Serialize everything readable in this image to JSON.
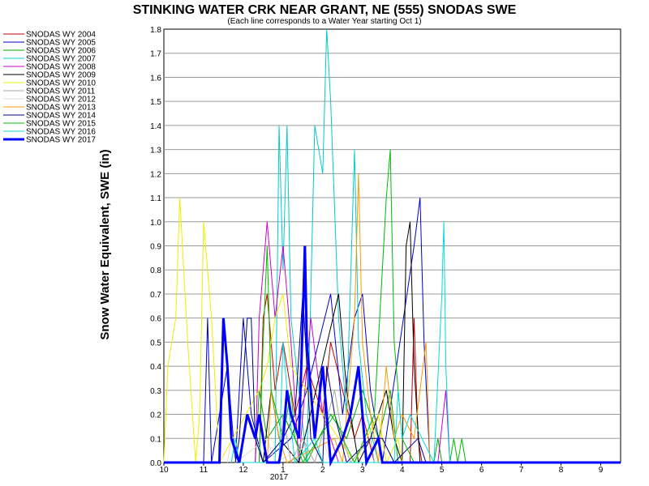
{
  "chart_data": {
    "type": "line",
    "title": "STINKING WATER CRK NEAR GRANT, NE (555) SNODAS SWE",
    "subtitle": "(Each line corresponds to a Water Year starting Oct 1)",
    "xlabel": "",
    "ylabel": "Snow Water Equivalent, SWE (in)",
    "x_year_label": "2017",
    "xlim": [
      10,
      21.5
    ],
    "ylim": [
      0,
      1.8
    ],
    "x_ticks": [
      {
        "value": 10,
        "label": "10"
      },
      {
        "value": 11,
        "label": "11"
      },
      {
        "value": 12,
        "label": "12"
      },
      {
        "value": 13,
        "label": "1"
      },
      {
        "value": 14,
        "label": "2"
      },
      {
        "value": 15,
        "label": "3"
      },
      {
        "value": 16,
        "label": "4"
      },
      {
        "value": 17,
        "label": "5"
      },
      {
        "value": 18,
        "label": "6"
      },
      {
        "value": 19,
        "label": "7"
      },
      {
        "value": 20,
        "label": "8"
      },
      {
        "value": 21,
        "label": "9"
      }
    ],
    "y_ticks": [
      "0.0",
      "0.1",
      "0.2",
      "0.3",
      "0.4",
      "0.5",
      "0.6",
      "0.7",
      "0.8",
      "0.9",
      "1.0",
      "1.1",
      "1.2",
      "1.3",
      "1.4",
      "1.5",
      "1.6",
      "1.7",
      "1.8"
    ],
    "grid": "horizontal",
    "legend_position": "left",
    "series": [
      {
        "name": "SNODAS WY 2004",
        "color": "#cc0000",
        "width": 1,
        "points": [
          [
            12.4,
            0
          ],
          [
            12.5,
            0.6
          ],
          [
            12.6,
            0.7
          ],
          [
            12.8,
            0.3
          ],
          [
            13,
            0.5
          ],
          [
            13.3,
            0.2
          ],
          [
            13.6,
            0.4
          ],
          [
            14,
            0.2
          ],
          [
            14.2,
            0.5
          ],
          [
            14.5,
            0.3
          ],
          [
            14.8,
            0.1
          ],
          [
            15,
            0.2
          ],
          [
            15.3,
            0
          ],
          [
            16.2,
            0
          ],
          [
            16.3,
            0.6
          ],
          [
            16.4,
            0.1
          ],
          [
            16.5,
            0
          ]
        ]
      },
      {
        "name": "SNODAS WY 2005",
        "color": "#0000cc",
        "width": 1,
        "points": [
          [
            11,
            0
          ],
          [
            11.1,
            0.6
          ],
          [
            11.2,
            0
          ],
          [
            11.6,
            0.4
          ],
          [
            11.8,
            0
          ],
          [
            12,
            0.6
          ],
          [
            12.2,
            0.2
          ],
          [
            12.5,
            0
          ],
          [
            13.2,
            0.1
          ],
          [
            13.6,
            0.3
          ],
          [
            14.2,
            0.7
          ],
          [
            14.5,
            0.2
          ],
          [
            14.8,
            0.6
          ],
          [
            15,
            0.7
          ],
          [
            15.2,
            0.3
          ],
          [
            15.5,
            0
          ],
          [
            16.3,
            0.9
          ],
          [
            16.45,
            1.1
          ],
          [
            16.55,
            0.5
          ],
          [
            16.7,
            0
          ]
        ]
      },
      {
        "name": "SNODAS WY 2006",
        "color": "#00aa00",
        "width": 1,
        "points": [
          [
            12.3,
            0
          ],
          [
            12.4,
            0.3
          ],
          [
            12.6,
            0.1
          ],
          [
            13,
            0.2
          ],
          [
            13.3,
            0.1
          ],
          [
            13.6,
            0
          ],
          [
            14.2,
            0.2
          ],
          [
            14.6,
            0.1
          ],
          [
            15,
            0.3
          ],
          [
            15.4,
            0.1
          ],
          [
            15.7,
            0.3
          ],
          [
            15.9,
            0
          ],
          [
            16.8,
            0
          ],
          [
            16.9,
            0.1
          ],
          [
            17,
            0
          ]
        ]
      },
      {
        "name": "SNODAS WY 2007",
        "color": "#00cccc",
        "width": 1,
        "points": [
          [
            12.8,
            0
          ],
          [
            12.9,
            1.4
          ],
          [
            13,
            0.8
          ],
          [
            13.1,
            1.4
          ],
          [
            13.2,
            0.6
          ],
          [
            13.6,
            0
          ],
          [
            13.8,
            1.4
          ],
          [
            14,
            1.2
          ],
          [
            14.1,
            1.8
          ],
          [
            14.2,
            1.5
          ],
          [
            14.4,
            0.6
          ],
          [
            14.6,
            0.2
          ],
          [
            14.8,
            1.3
          ],
          [
            14.9,
            0.5
          ],
          [
            15.1,
            0.2
          ],
          [
            15.4,
            0
          ]
        ]
      },
      {
        "name": "SNODAS WY 2008",
        "color": "#cc00cc",
        "width": 1,
        "points": [
          [
            12.3,
            0
          ],
          [
            12.4,
            0.6
          ],
          [
            12.5,
            0.8
          ],
          [
            12.6,
            1.0
          ],
          [
            12.8,
            0.6
          ],
          [
            13,
            0.9
          ],
          [
            13.2,
            0.5
          ],
          [
            13.4,
            0
          ],
          [
            13.7,
            0.6
          ],
          [
            14,
            0.2
          ],
          [
            14.4,
            0
          ],
          [
            16.9,
            0
          ],
          [
            17.1,
            0.3
          ],
          [
            17.2,
            0
          ]
        ]
      },
      {
        "name": "SNODAS WY 2009",
        "color": "#000000",
        "width": 1,
        "points": [
          [
            12.5,
            0
          ],
          [
            12.7,
            0.3
          ],
          [
            12.9,
            0.1
          ],
          [
            13.4,
            0
          ],
          [
            14.4,
            0.7
          ],
          [
            14.6,
            0.3
          ],
          [
            14.9,
            0
          ],
          [
            15.2,
            0.1
          ],
          [
            15.6,
            0.3
          ],
          [
            15.8,
            0.1
          ],
          [
            16,
            0
          ],
          [
            16.1,
            0.9
          ],
          [
            16.2,
            1.0
          ],
          [
            16.3,
            0.4
          ],
          [
            16.45,
            0
          ]
        ]
      },
      {
        "name": "SNODAS WY 2010",
        "color": "#eeee00",
        "width": 1,
        "points": [
          [
            10,
            0
          ],
          [
            10.1,
            0.4
          ],
          [
            10.3,
            0.6
          ],
          [
            10.4,
            1.1
          ],
          [
            10.6,
            0.5
          ],
          [
            10.8,
            0
          ],
          [
            10.9,
            0.2
          ],
          [
            11,
            1.0
          ],
          [
            11.2,
            0.6
          ],
          [
            11.4,
            0
          ],
          [
            12.4,
            0.3
          ],
          [
            12.6,
            0.4
          ],
          [
            12.8,
            0.6
          ],
          [
            13,
            0.7
          ],
          [
            13.2,
            0.4
          ],
          [
            13.6,
            0.3
          ],
          [
            14,
            0.2
          ],
          [
            14.4,
            0.1
          ],
          [
            14.8,
            0
          ],
          [
            15.4,
            0.2
          ],
          [
            15.6,
            0
          ],
          [
            15.9,
            0.1
          ],
          [
            16,
            0
          ]
        ]
      },
      {
        "name": "SNODAS WY 2011",
        "color": "#aaaaaa",
        "width": 1,
        "points": [
          [
            12.9,
            0
          ],
          [
            13,
            0.2
          ],
          [
            13.2,
            0
          ],
          [
            13.5,
            0.1
          ],
          [
            13.8,
            0
          ],
          [
            14.3,
            0.3
          ],
          [
            14.5,
            0.1
          ],
          [
            14.7,
            0
          ],
          [
            15.2,
            0.1
          ],
          [
            15.3,
            0
          ]
        ]
      },
      {
        "name": "SNODAS WY 2012",
        "color": "#dddddd",
        "width": 1,
        "points": [
          [
            11.6,
            0
          ],
          [
            11.7,
            0.1
          ],
          [
            11.8,
            0
          ],
          [
            12.6,
            0.1
          ],
          [
            12.8,
            0
          ],
          [
            14,
            0.1
          ],
          [
            14.2,
            0
          ]
        ]
      },
      {
        "name": "SNODAS WY 2013",
        "color": "#ff9900",
        "width": 1,
        "points": [
          [
            12.6,
            0
          ],
          [
            12.7,
            0.3
          ],
          [
            12.9,
            0.1
          ],
          [
            13.1,
            0
          ],
          [
            14.3,
            0.1
          ],
          [
            14.5,
            0
          ],
          [
            14.8,
            0.6
          ],
          [
            14.9,
            1.2
          ],
          [
            15,
            0.5
          ],
          [
            15.2,
            0.2
          ],
          [
            15.4,
            0
          ],
          [
            15.6,
            0.4
          ],
          [
            15.8,
            0.1
          ],
          [
            16,
            0.2
          ],
          [
            16.3,
            0.1
          ],
          [
            16.6,
            0.5
          ],
          [
            16.7,
            0
          ]
        ]
      },
      {
        "name": "SNODAS WY 2014",
        "color": "#000088",
        "width": 1,
        "points": [
          [
            11.8,
            0
          ],
          [
            11.9,
            0.1
          ],
          [
            12.1,
            0.6
          ],
          [
            12.2,
            0.6
          ],
          [
            12.3,
            0.1
          ],
          [
            12.5,
            0
          ],
          [
            13,
            0.1
          ],
          [
            13.3,
            0.2
          ],
          [
            13.5,
            0.7
          ],
          [
            13.7,
            0.1
          ],
          [
            14,
            0
          ],
          [
            14.1,
            0.4
          ],
          [
            14.3,
            0.2
          ],
          [
            14.6,
            0
          ],
          [
            15.2,
            0.1
          ],
          [
            15.5,
            0.1
          ],
          [
            15.8,
            0
          ],
          [
            16.4,
            0.1
          ],
          [
            16.6,
            0
          ]
        ]
      },
      {
        "name": "SNODAS WY 2015",
        "color": "#00bb00",
        "width": 1,
        "points": [
          [
            12.4,
            0
          ],
          [
            12.5,
            0.5
          ],
          [
            12.6,
            0.9
          ],
          [
            12.7,
            0.3
          ],
          [
            13,
            0.1
          ],
          [
            13.2,
            0.3
          ],
          [
            13.3,
            0.1
          ],
          [
            13.5,
            0
          ],
          [
            14.3,
            0.2
          ],
          [
            14.5,
            0.1
          ],
          [
            14.8,
            0
          ],
          [
            15.3,
            0.2
          ],
          [
            15.5,
            0.8
          ],
          [
            15.6,
            1.1
          ],
          [
            15.7,
            1.3
          ],
          [
            15.8,
            0.5
          ],
          [
            16,
            0.1
          ],
          [
            16.3,
            0
          ],
          [
            17.2,
            0
          ],
          [
            17.3,
            0.1
          ],
          [
            17.4,
            0
          ],
          [
            17.5,
            0.1
          ],
          [
            17.6,
            0
          ]
        ]
      },
      {
        "name": "SNODAS WY 2016",
        "color": "#00dddd",
        "width": 1,
        "points": [
          [
            11.7,
            0
          ],
          [
            11.8,
            0.1
          ],
          [
            11.9,
            0
          ],
          [
            12.9,
            0
          ],
          [
            13,
            0.5
          ],
          [
            13.1,
            0.3
          ],
          [
            13.3,
            0
          ],
          [
            13.8,
            0.1
          ],
          [
            14,
            0
          ],
          [
            15.8,
            0
          ],
          [
            15.9,
            0.3
          ],
          [
            16,
            0.1
          ],
          [
            16.2,
            0.2
          ],
          [
            16.5,
            0.1
          ],
          [
            16.8,
            0
          ],
          [
            17,
            0.7
          ],
          [
            17.05,
            1.0
          ],
          [
            17.1,
            0.4
          ],
          [
            17.2,
            0
          ]
        ]
      },
      {
        "name": "SNODAS WY 2017",
        "color": "#0000ff",
        "width": 3,
        "points": [
          [
            10,
            0
          ],
          [
            11.4,
            0
          ],
          [
            11.5,
            0.6
          ],
          [
            11.6,
            0.4
          ],
          [
            11.7,
            0.1
          ],
          [
            11.9,
            0
          ],
          [
            12.1,
            0.2
          ],
          [
            12.3,
            0.1
          ],
          [
            12.4,
            0.2
          ],
          [
            12.5,
            0.1
          ],
          [
            12.6,
            0
          ],
          [
            12.9,
            0
          ],
          [
            13,
            0.1
          ],
          [
            13.1,
            0.3
          ],
          [
            13.2,
            0.2
          ],
          [
            13.4,
            0.1
          ],
          [
            13.5,
            0.6
          ],
          [
            13.55,
            0.9
          ],
          [
            13.6,
            0.5
          ],
          [
            13.7,
            0.3
          ],
          [
            13.8,
            0.1
          ],
          [
            14,
            0.4
          ],
          [
            14.1,
            0.2
          ],
          [
            14.2,
            0
          ],
          [
            14.5,
            0.1
          ],
          [
            14.7,
            0.2
          ],
          [
            14.8,
            0.3
          ],
          [
            14.9,
            0.4
          ],
          [
            15,
            0.2
          ],
          [
            15.1,
            0
          ],
          [
            15.4,
            0.1
          ],
          [
            15.5,
            0
          ],
          [
            21.5,
            0
          ]
        ]
      }
    ]
  }
}
